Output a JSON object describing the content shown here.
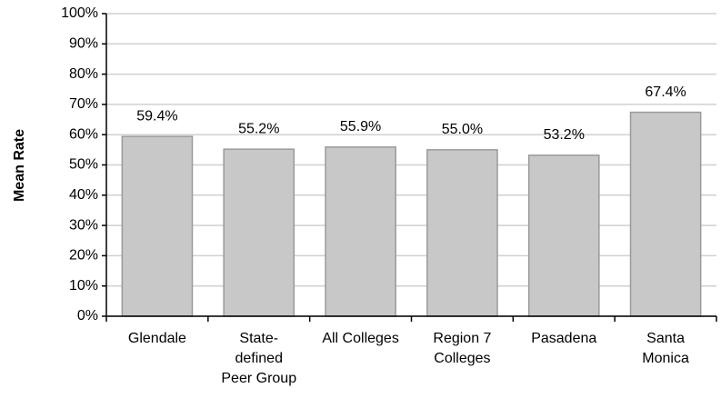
{
  "chart_data": {
    "type": "bar",
    "y_label": "Mean Rate",
    "categories": [
      "Glendale",
      "State-\ndefined\nPeer Group",
      "All Colleges",
      "Region 7\nColleges",
      "Pasadena",
      "Santa\nMonica"
    ],
    "values": [
      59.4,
      55.2,
      55.9,
      55.0,
      53.2,
      67.4
    ],
    "value_labels": [
      "59.4%",
      "55.2%",
      "55.9%",
      "55.0%",
      "53.2%",
      "67.4%"
    ],
    "color": "#c8c8c8",
    "ylim": [
      0,
      100
    ],
    "yticks": [
      {
        "value": 0,
        "label": "0%"
      },
      {
        "value": 10,
        "label": "10%"
      },
      {
        "value": 20,
        "label": "20%"
      },
      {
        "value": 30,
        "label": "30%"
      },
      {
        "value": 40,
        "label": "40%"
      },
      {
        "value": 50,
        "label": "50%"
      },
      {
        "value": 60,
        "label": "60%"
      },
      {
        "value": 70,
        "label": "70%"
      },
      {
        "value": 80,
        "label": "80%"
      },
      {
        "value": 90,
        "label": "90%"
      },
      {
        "value": 100,
        "label": "100%"
      }
    ],
    "grid": true
  }
}
